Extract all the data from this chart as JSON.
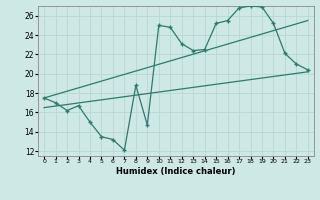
{
  "xlabel": "Humidex (Indice chaleur)",
  "bg_color": "#cde8e5",
  "line_color": "#2d7a6e",
  "grid_color": "#b8d8d4",
  "xlim": [
    -0.5,
    23.5
  ],
  "ylim": [
    11.5,
    27.0
  ],
  "xticks": [
    0,
    1,
    2,
    3,
    4,
    5,
    6,
    7,
    8,
    9,
    10,
    11,
    12,
    13,
    14,
    15,
    16,
    17,
    18,
    19,
    20,
    21,
    22,
    23
  ],
  "yticks": [
    12,
    14,
    16,
    18,
    20,
    22,
    24,
    26
  ],
  "line1_x": [
    0,
    1,
    2,
    3,
    4,
    5,
    6,
    7,
    8,
    9,
    10,
    11,
    12,
    13,
    14,
    15,
    16,
    17,
    18,
    19,
    20,
    21,
    22,
    23
  ],
  "line1_y": [
    17.5,
    17.0,
    16.2,
    16.7,
    15.0,
    13.5,
    13.2,
    12.1,
    18.8,
    14.7,
    25.0,
    24.8,
    23.1,
    22.4,
    22.5,
    25.2,
    25.5,
    26.8,
    27.0,
    26.9,
    25.2,
    22.1,
    21.0,
    20.4
  ],
  "line2_x": [
    0,
    23
  ],
  "line2_y": [
    17.5,
    25.5
  ],
  "line3_x": [
    0,
    23
  ],
  "line3_y": [
    16.5,
    20.2
  ]
}
